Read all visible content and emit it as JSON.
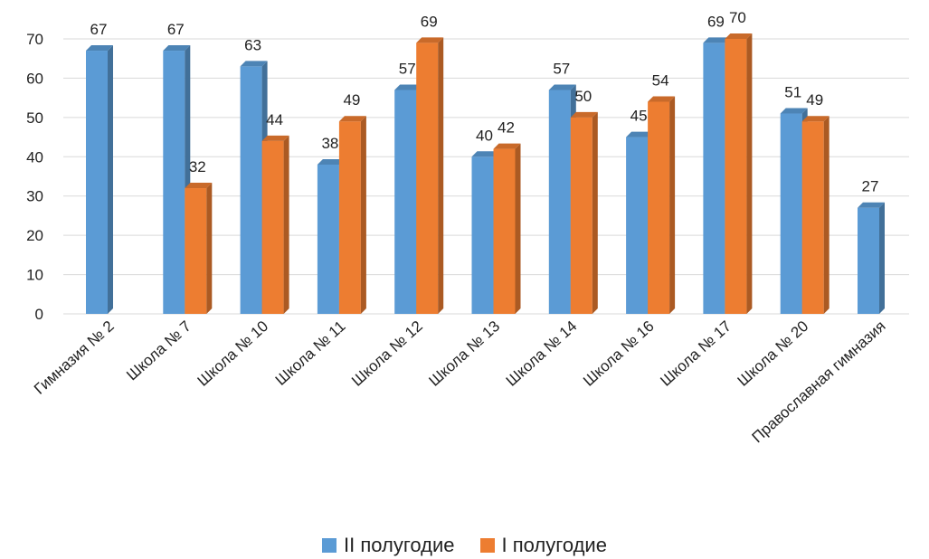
{
  "chart_data": {
    "type": "bar",
    "categories": [
      "Гимназия № 2",
      "Школа № 7",
      "Школа № 10",
      "Школа № 11",
      "Школа № 12",
      "Школа № 13",
      "Школа № 14",
      "Школа № 16",
      "Школа № 17",
      "Школа № 20",
      "Православная гимназия"
    ],
    "series": [
      {
        "name": "II полугодие",
        "color": "#5b9bd5",
        "values": [
          67,
          67,
          63,
          38,
          57,
          40,
          57,
          45,
          69,
          51,
          27
        ]
      },
      {
        "name": "I полугодие",
        "color": "#ed7d31",
        "values": [
          null,
          32,
          44,
          49,
          69,
          42,
          50,
          54,
          70,
          49,
          null
        ]
      }
    ],
    "yticks": [
      0,
      10,
      20,
      30,
      40,
      50,
      60,
      70
    ],
    "ylim": [
      0,
      70
    ],
    "grid": true,
    "legend": "bottom",
    "title": "",
    "xlabel": "",
    "ylabel": ""
  }
}
